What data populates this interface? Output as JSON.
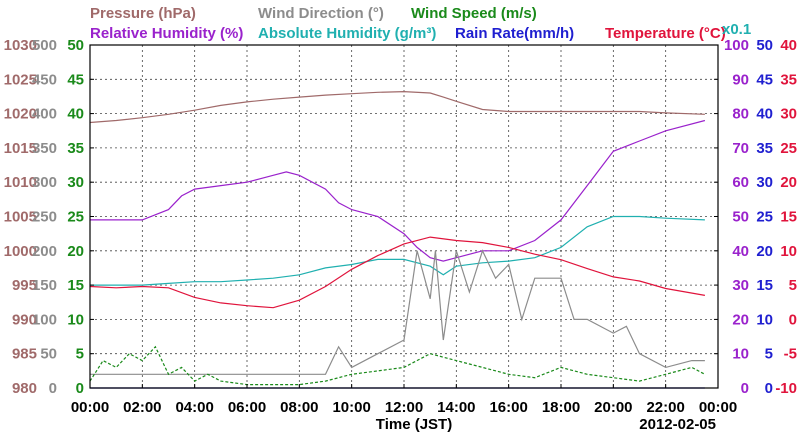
{
  "chart_data": {
    "type": "line",
    "date": "2012-02-05",
    "xlabel": "Time (JST)",
    "x_ticks": [
      "00:00",
      "02:00",
      "04:00",
      "06:00",
      "08:00",
      "10:00",
      "12:00",
      "14:00",
      "16:00",
      "18:00",
      "20:00",
      "22:00",
      "00:00"
    ],
    "grid": true,
    "legend": {
      "row1": [
        {
          "text": "Pressure (hPa)",
          "color": "#a06a6a"
        },
        {
          "text": "Wind Direction (°)",
          "color": "#8c8c8c"
        },
        {
          "text": "Wind Speed (m/s)",
          "color": "#1a8a1a"
        }
      ],
      "row2": [
        {
          "text": "Relative Humidity (%)",
          "color": "#9a22cc"
        },
        {
          "text": "Absolute Humidity (g/m³)",
          "color": "#20b0b0"
        },
        {
          "text": "Rain Rate(mm/h)",
          "color": "#1f1fd0"
        },
        {
          "text": "Temperature (°C)",
          "color": "#e0143c"
        }
      ],
      "x01": {
        "text": "x0.1",
        "color": "#20b0b0"
      }
    },
    "axes": {
      "pressure": {
        "ticks": [
          "1030",
          "1025",
          "1020",
          "1015",
          "1010",
          "1005",
          "1000",
          "995",
          "990",
          "985",
          "980"
        ],
        "color": "#a06a6a",
        "ylim": [
          980,
          1030
        ]
      },
      "wind_speed": {
        "ticks": [
          "50",
          "45",
          "40",
          "35",
          "30",
          "25",
          "20",
          "15",
          "10",
          "5",
          "0"
        ],
        "color": "#1a8a1a",
        "ylim": [
          0,
          50
        ]
      },
      "wind_direction": {
        "ticks": [
          "500",
          "450",
          "400",
          "350",
          "300",
          "250",
          "200",
          "150",
          "100",
          "50",
          "0"
        ],
        "color": "#8c8c8c",
        "ylim": [
          0,
          500
        ]
      },
      "humidity": {
        "ticks": [
          "100",
          "90",
          "80",
          "70",
          "60",
          "50",
          "40",
          "30",
          "20",
          "10",
          "0"
        ],
        "color": "#9a22cc",
        "ylim": [
          0,
          100
        ]
      },
      "rain_rate": {
        "ticks": [
          "50",
          "45",
          "40",
          "35",
          "30",
          "25",
          "20",
          "15",
          "10",
          "5",
          "0"
        ],
        "color": "#1f1fd0",
        "ylim": [
          0,
          50
        ]
      },
      "temperature": {
        "ticks": [
          "40",
          "35",
          "30",
          "25",
          "20",
          "15",
          "10",
          "5",
          "0",
          "-5",
          "-10"
        ],
        "color": "#e0143c",
        "ylim": [
          -10,
          40
        ]
      }
    },
    "series": [
      {
        "name": "Pressure (hPa)",
        "color": "#a06a6a",
        "axis": "pressure",
        "x": [
          0,
          1,
          2,
          3,
          4,
          5,
          6,
          7,
          8,
          9,
          10,
          11,
          12,
          13,
          13.5,
          14,
          15,
          16,
          17,
          18,
          19,
          20,
          21,
          22,
          23.5
        ],
        "y": [
          1018.7,
          1019.0,
          1019.4,
          1019.9,
          1020.5,
          1021.2,
          1021.7,
          1022.1,
          1022.4,
          1022.7,
          1022.9,
          1023.1,
          1023.2,
          1023.0,
          1022.4,
          1021.8,
          1020.6,
          1020.3,
          1020.3,
          1020.3,
          1020.3,
          1020.3,
          1020.3,
          1020.1,
          1019.9
        ]
      },
      {
        "name": "Relative Humidity (%)",
        "color": "#9a22cc",
        "axis": "humidity",
        "x": [
          0,
          1,
          2,
          3,
          3.5,
          4,
          5,
          6,
          7,
          7.5,
          8,
          9,
          9.5,
          10,
          11,
          12,
          12.5,
          13,
          13.5,
          14,
          15,
          16,
          17,
          18,
          19,
          20,
          21,
          22,
          23.5
        ],
        "y": [
          49,
          49,
          49,
          52,
          56,
          58,
          59,
          60,
          62,
          63,
          62,
          58,
          54,
          52,
          50,
          45,
          41,
          38,
          37,
          38,
          40,
          40,
          43,
          49,
          59,
          69,
          72,
          75,
          78
        ]
      },
      {
        "name": "Absolute Humidity (g/m³)",
        "color": "#20b0b0",
        "axis": "humidity",
        "x": [
          0,
          1,
          2,
          3,
          4,
          5,
          6,
          7,
          8,
          9,
          10,
          11,
          12,
          13,
          13.5,
          14,
          15,
          16,
          17,
          18,
          19,
          20,
          21,
          22,
          23.5
        ],
        "y": [
          30,
          30,
          30,
          30.5,
          31,
          31,
          31.5,
          32,
          33,
          35,
          36,
          37.5,
          37.5,
          35.5,
          33,
          35.5,
          36.5,
          37,
          38,
          41,
          47,
          50,
          50,
          49.5,
          49
        ]
      },
      {
        "name": "Temperature (°C)",
        "color": "#e0143c",
        "axis": "temperature",
        "x": [
          0,
          1,
          2,
          3,
          4,
          5,
          6,
          7,
          8,
          9,
          10,
          11,
          12,
          13,
          14,
          15,
          16,
          17,
          18,
          19,
          20,
          21,
          22,
          23.5
        ],
        "y": [
          4.8,
          4.6,
          4.8,
          4.6,
          3.2,
          2.4,
          2.0,
          1.7,
          2.8,
          4.8,
          7.3,
          9.3,
          11.0,
          12.0,
          11.5,
          11.2,
          10.5,
          9.5,
          8.7,
          7.4,
          6.2,
          5.6,
          4.5,
          3.5
        ]
      },
      {
        "name": "Wind Direction (°)",
        "color": "#8c8c8c",
        "axis": "wind_direction",
        "x": [
          0,
          1,
          2,
          3,
          4,
          5,
          6,
          7,
          8,
          9,
          9.5,
          10,
          11,
          12,
          12.5,
          13,
          13.2,
          13.5,
          14,
          14.5,
          15,
          15.5,
          16,
          16.5,
          17,
          17.5,
          18,
          18.5,
          19,
          20,
          20.5,
          21,
          22,
          23,
          23.5
        ],
        "y": [
          20,
          20,
          20,
          20,
          20,
          20,
          20,
          20,
          20,
          20,
          60,
          30,
          50,
          70,
          200,
          130,
          200,
          70,
          200,
          140,
          200,
          160,
          180,
          100,
          160,
          160,
          160,
          100,
          100,
          80,
          90,
          50,
          30,
          40,
          40
        ]
      },
      {
        "name": "Wind Speed (m/s)",
        "color": "#1a8a1a",
        "axis": "wind_speed",
        "x": [
          0,
          0.5,
          1,
          1.5,
          2,
          2.5,
          3,
          3.5,
          4,
          4.5,
          5,
          6,
          7,
          8,
          9,
          10,
          11,
          12,
          13,
          14,
          15,
          16,
          17,
          18,
          19,
          20,
          21,
          22,
          23,
          23.5
        ],
        "y": [
          1,
          4,
          3,
          5,
          4,
          6,
          2,
          3,
          1,
          2,
          1,
          0.5,
          0.5,
          0.5,
          1,
          2,
          2.5,
          3,
          5,
          4,
          3,
          2,
          1.5,
          3,
          2,
          1.5,
          1,
          2,
          3,
          2
        ]
      },
      {
        "name": "Rain Rate(mm/h)",
        "color": "#1f1fd0",
        "axis": "rain_rate",
        "x": [
          0,
          23.5
        ],
        "y": [
          0,
          0
        ]
      }
    ]
  }
}
